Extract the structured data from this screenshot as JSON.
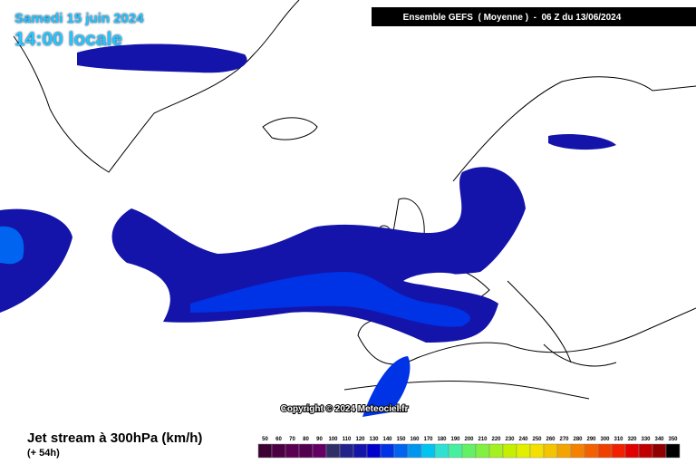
{
  "header": {
    "date": "Samedi 15 juin 2024",
    "time": "14:00 locale",
    "model": "Ensemble GEFS  ( Moyenne )  -  06 Z du 13/06/2024"
  },
  "copyright": "Copyright © 2024 Meteociel.fr",
  "footer": {
    "title": "Jet stream à 300hPa (km/h)",
    "lead": "(+ 54h)"
  },
  "scale": {
    "values": [
      50,
      60,
      70,
      80,
      90,
      100,
      110,
      120,
      130,
      140,
      150,
      160,
      170,
      180,
      190,
      200,
      210,
      220,
      230,
      240,
      250,
      260,
      270,
      280,
      290,
      300,
      310,
      320,
      330,
      340,
      350
    ],
    "colors": [
      "#3c0032",
      "#4c0044",
      "#5a0052",
      "#520050",
      "#640064",
      "#303068",
      "#22228a",
      "#1414aa",
      "#0000cc",
      "#0032e6",
      "#0064f0",
      "#0096f0",
      "#00c4f0",
      "#30e0d0",
      "#46f0a0",
      "#64f064",
      "#82f040",
      "#a4f020",
      "#c4f000",
      "#e2f000",
      "#f4e000",
      "#f4c400",
      "#f4a400",
      "#f48200",
      "#f46000",
      "#f04000",
      "#f02000",
      "#e00000",
      "#c00000",
      "#900000",
      "#000000"
    ]
  }
}
